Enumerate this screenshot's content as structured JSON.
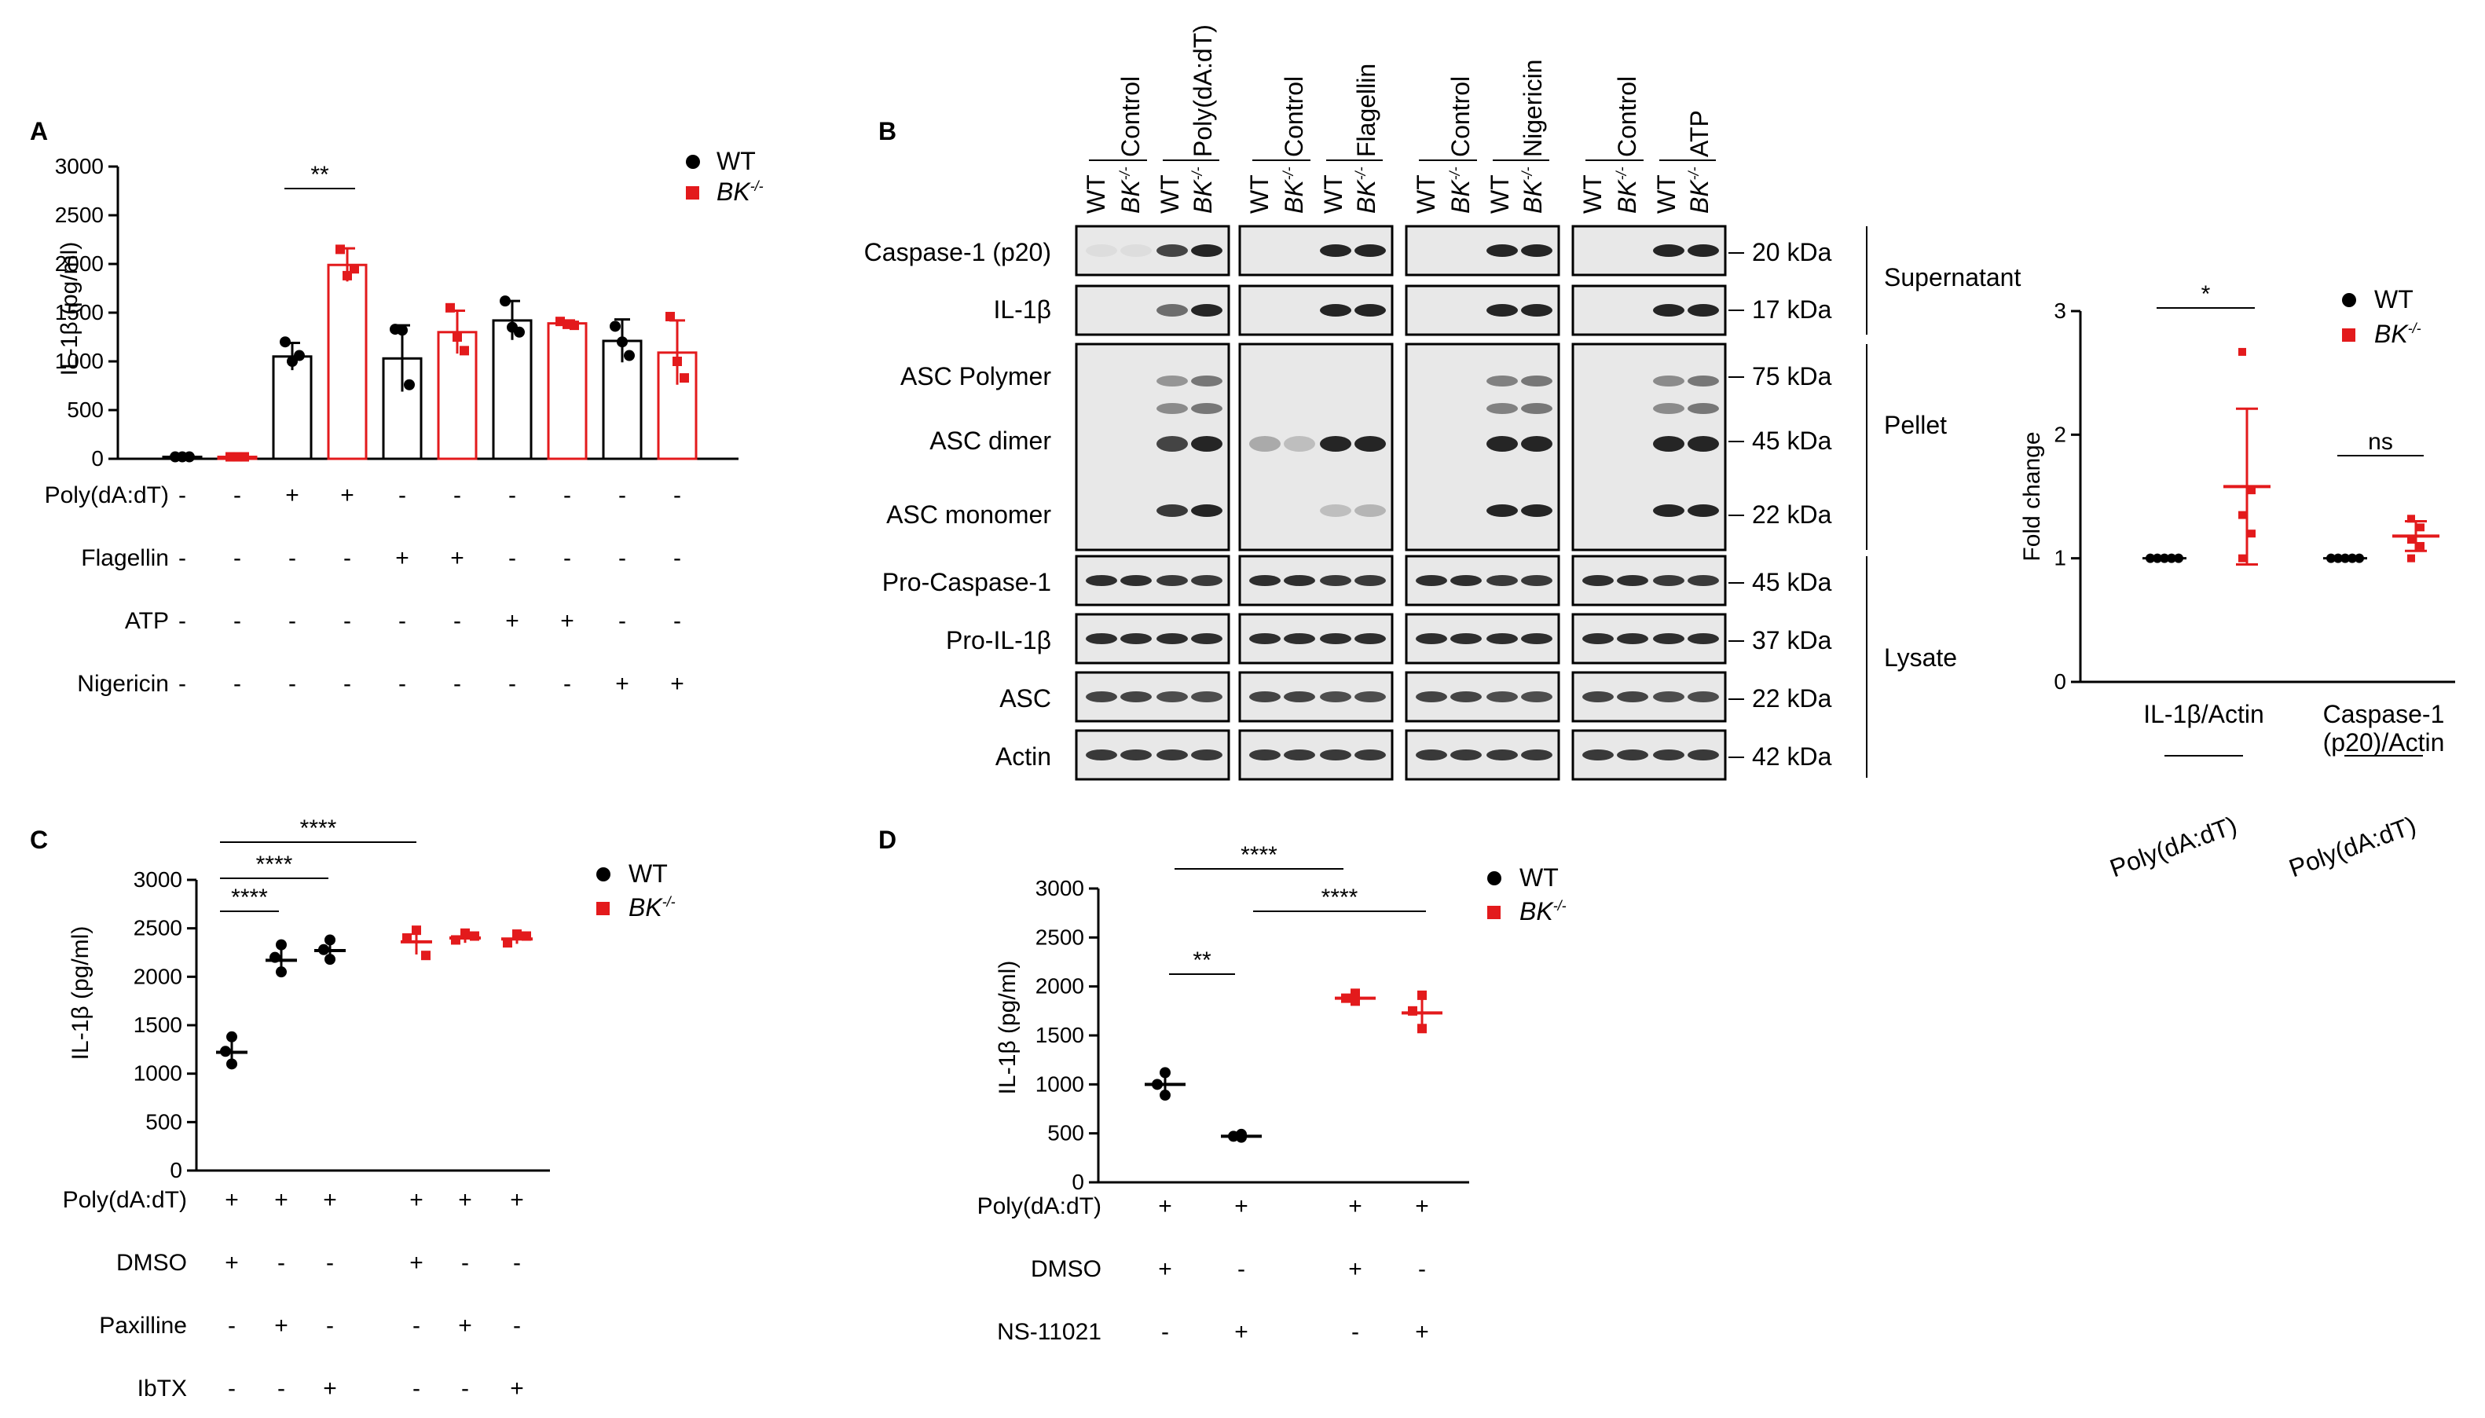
{
  "colors": {
    "wt": "#000000",
    "bk": "#e31a1c",
    "band": "#1a1a1a",
    "blot_bg": "#e8e8e8"
  },
  "legend": {
    "wt": "WT",
    "bk": "BK",
    "bk_sup": "-/-"
  },
  "panel_labels": {
    "a": "A",
    "b": "B",
    "c": "C",
    "d": "D"
  },
  "chart_data": [
    {
      "id": "A",
      "type": "bar",
      "ylabel": "IL-1β (pg/ml)",
      "ylim": [
        0,
        3000
      ],
      "yticks": [
        0,
        500,
        1000,
        1500,
        2000,
        2500,
        3000
      ],
      "groups": [
        "WT",
        "BK-/-",
        "WT",
        "BK-/-",
        "WT",
        "BK-/-",
        "WT",
        "BK-/-",
        "WT",
        "BK-/-"
      ],
      "values": [
        20,
        20,
        1050,
        1990,
        1030,
        1300,
        1420,
        1390,
        1210,
        1090
      ],
      "errors": [
        10,
        10,
        140,
        170,
        340,
        220,
        200,
        30,
        220,
        330
      ],
      "points": [
        [
          20,
          20,
          20
        ],
        [
          20,
          20,
          20
        ],
        [
          1200,
          1000,
          1060
        ],
        [
          2150,
          1880,
          1950
        ],
        [
          1330,
          1320,
          760
        ],
        [
          1550,
          1250,
          1110
        ],
        [
          1620,
          1350,
          1300
        ],
        [
          1410,
          1380,
          1370
        ],
        [
          1360,
          1200,
          1060
        ],
        [
          1460,
          1000,
          830
        ]
      ],
      "treatments": [
        {
          "name": "Poly(dA:dT)",
          "signs": [
            "-",
            "-",
            "+",
            "+",
            "-",
            "-",
            "-",
            "-",
            "-",
            "-"
          ]
        },
        {
          "name": "Flagellin",
          "signs": [
            "-",
            "-",
            "-",
            "-",
            "+",
            "+",
            "-",
            "-",
            "-",
            "-"
          ]
        },
        {
          "name": "ATP",
          "signs": [
            "-",
            "-",
            "-",
            "-",
            "-",
            "-",
            "+",
            "+",
            "-",
            "-"
          ]
        },
        {
          "name": "Nigericin",
          "signs": [
            "-",
            "-",
            "-",
            "-",
            "-",
            "-",
            "-",
            "-",
            "+",
            "+"
          ]
        }
      ],
      "significance": [
        {
          "from": 2,
          "to": 3,
          "label": "**"
        }
      ]
    },
    {
      "id": "B-quant",
      "type": "scatter",
      "ylabel": "Fold change",
      "ylim": [
        0,
        3
      ],
      "yticks": [
        0,
        1,
        2,
        3
      ],
      "categories": [
        "IL-1β/Actin",
        "Caspase-1 (p20)/Actin"
      ],
      "category_lines": [
        [
          "IL-1β/Actin"
        ],
        [
          "Caspase-1",
          "(p20)/Actin"
        ]
      ],
      "sub_labels": [
        "Poly(dA:dT)",
        "Poly(dA:dT)"
      ],
      "series": [
        {
          "name": "WT",
          "points": [
            [
              1,
              1,
              1,
              1,
              1
            ],
            [
              1,
              1,
              1,
              1,
              1
            ]
          ]
        },
        {
          "name": "BK-/-",
          "points": [
            [
              2.67,
              1.55,
              1.35,
              1.2,
              1.0
            ],
            [
              1.32,
              1.25,
              1.15,
              1.1,
              1.0
            ]
          ],
          "mean": [
            1.58,
            1.18
          ],
          "err": [
            0.63,
            0.12
          ]
        }
      ],
      "significance": [
        {
          "category": 0,
          "label": "*"
        },
        {
          "category": 1,
          "label": "ns"
        }
      ]
    },
    {
      "id": "C",
      "type": "scatter",
      "ylabel": "IL-1β (pg/ml)",
      "ylim": [
        0,
        3000
      ],
      "yticks": [
        0,
        500,
        1000,
        1500,
        2000,
        2500,
        3000
      ],
      "groups": [
        "WT",
        "WT",
        "WT",
        "BK-/-",
        "BK-/-",
        "BK-/-"
      ],
      "mean": [
        1220,
        2170,
        2270,
        2360,
        2400,
        2390
      ],
      "err": [
        130,
        130,
        110,
        130,
        50,
        50
      ],
      "points": [
        [
          1380,
          1230,
          1100
        ],
        [
          2330,
          2200,
          2050
        ],
        [
          2380,
          2280,
          2180
        ],
        [
          2480,
          2400,
          2220
        ],
        [
          2450,
          2380,
          2420
        ],
        [
          2440,
          2350,
          2420
        ]
      ],
      "treatments": [
        {
          "name": "Poly(dA:dT)",
          "signs": [
            "+",
            "+",
            "+",
            "+",
            "+",
            "+"
          ]
        },
        {
          "name": "DMSO",
          "signs": [
            "+",
            "-",
            "-",
            "+",
            "-",
            "-"
          ]
        },
        {
          "name": "Paxilline",
          "signs": [
            "-",
            "+",
            "-",
            "-",
            "+",
            "-"
          ]
        },
        {
          "name": "IbTX",
          "signs": [
            "-",
            "-",
            "+",
            "-",
            "-",
            "+"
          ]
        }
      ],
      "significance": [
        {
          "from": 0,
          "to": 1,
          "label": "****"
        },
        {
          "from": 0,
          "to": 2,
          "label": "****"
        },
        {
          "from": 0,
          "to": 3,
          "label": "****"
        }
      ]
    },
    {
      "id": "D",
      "type": "scatter",
      "ylabel": "IL-1β (pg/ml)",
      "ylim": [
        0,
        3000
      ],
      "yticks": [
        0,
        500,
        1000,
        1500,
        2000,
        2500,
        3000
      ],
      "groups": [
        "WT",
        "WT",
        "BK-/-",
        "BK-/-"
      ],
      "mean": [
        1000,
        470,
        1880,
        1730
      ],
      "err": [
        130,
        30,
        60,
        180
      ],
      "points": [
        [
          1120,
          1000,
          890
        ],
        [
          490,
          470,
          460
        ],
        [
          1930,
          1880,
          1850
        ],
        [
          1910,
          1750,
          1570
        ]
      ],
      "treatments": [
        {
          "name": "Poly(dA:dT)",
          "signs": [
            "+",
            "+",
            "+",
            "+"
          ]
        },
        {
          "name": "DMSO",
          "signs": [
            "+",
            "-",
            "+",
            "-"
          ]
        },
        {
          "name": "NS-11021",
          "signs": [
            "-",
            "+",
            "-",
            "+"
          ]
        }
      ],
      "significance": [
        {
          "from": 0,
          "to": 1,
          "label": "**"
        },
        {
          "from": 0,
          "to": 2,
          "label": "****"
        },
        {
          "from": 1,
          "to": 3,
          "label": "****"
        }
      ]
    }
  ],
  "western_blot": {
    "col_groups": [
      {
        "control": "Control",
        "treatment": "Poly(dA:dT)"
      },
      {
        "control": "Control",
        "treatment": "Flagellin"
      },
      {
        "control": "Control",
        "treatment": "Nigericin"
      },
      {
        "control": "Control",
        "treatment": "ATP"
      }
    ],
    "lane_labels": [
      "WT",
      "BK-/-",
      "WT",
      "BK-/-"
    ],
    "rows": [
      {
        "label": "Caspase-1 (p20)",
        "marker": "20 kDa"
      },
      {
        "label": "IL-1β",
        "marker": "17 kDa"
      },
      {
        "label": "ASC Polymer",
        "marker": "75 kDa"
      },
      {
        "label": "ASC dimer",
        "marker": "45 kDa"
      },
      {
        "label": "ASC monomer",
        "marker": "22 kDa"
      },
      {
        "label": "Pro-Caspase-1",
        "marker": "45 kDa"
      },
      {
        "label": "Pro-IL-1β",
        "marker": "37 kDa"
      },
      {
        "label": "ASC",
        "marker": "22 kDa"
      },
      {
        "label": "Actin",
        "marker": "42 kDa"
      }
    ],
    "fractions": [
      "Supernatant",
      "Pellet",
      "Lysate"
    ]
  }
}
